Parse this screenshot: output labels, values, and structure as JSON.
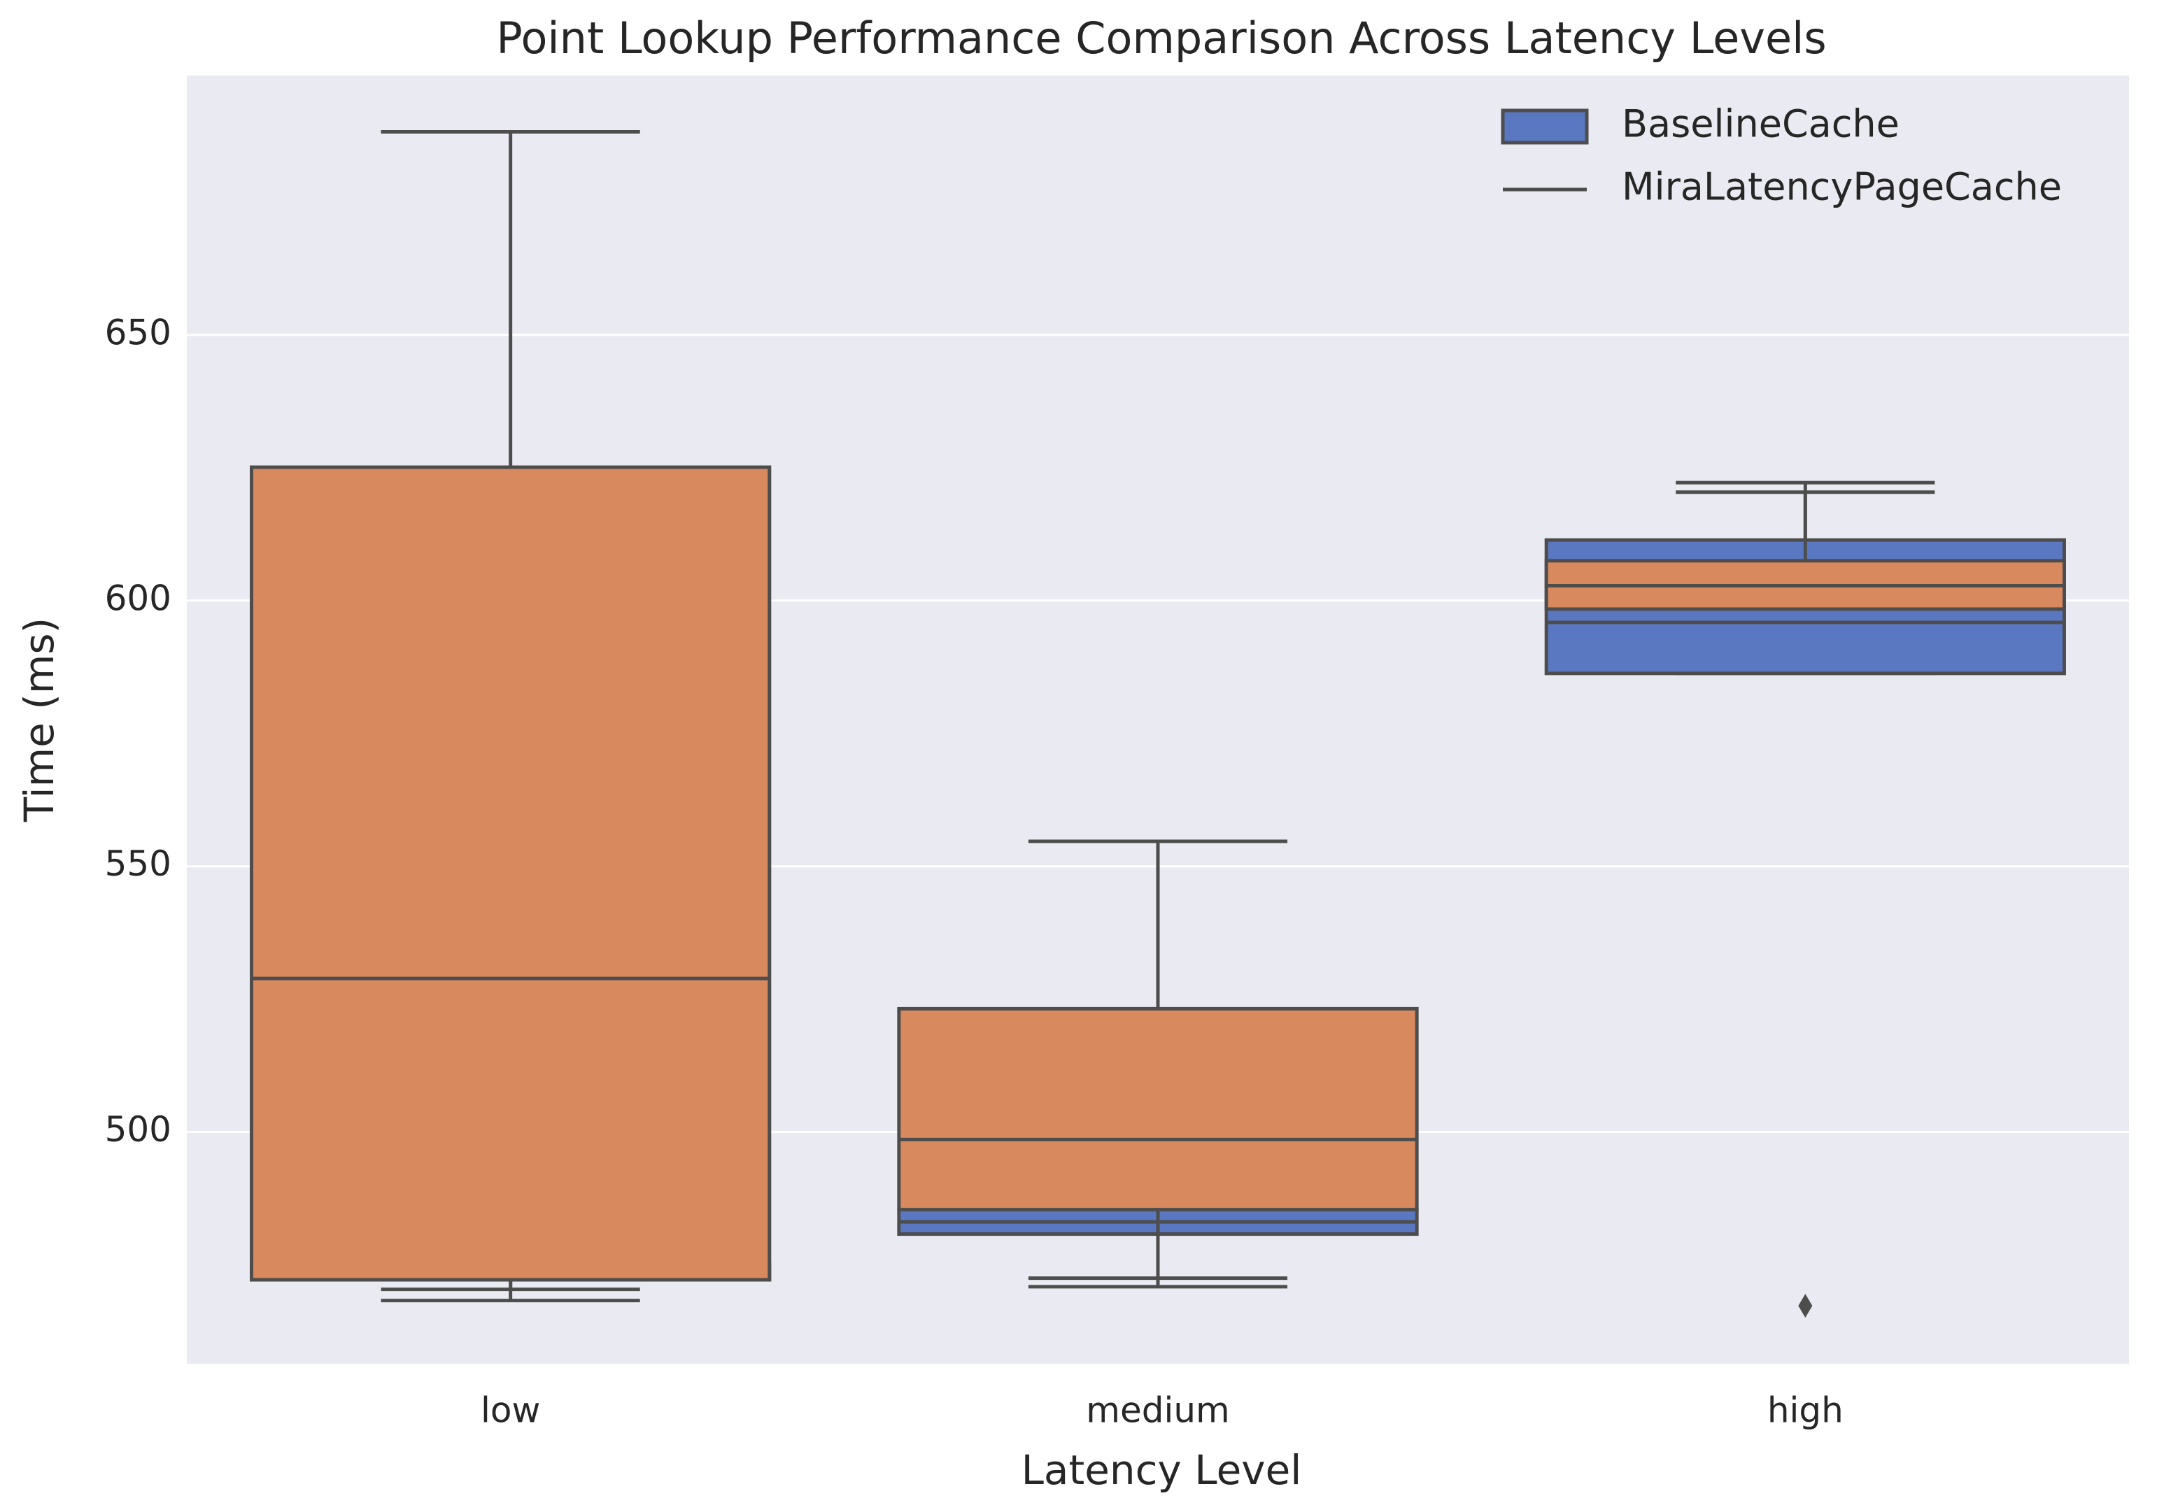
{
  "chart_data": {
    "type": "box",
    "title": "Point Lookup Performance Comparison Across Latency Levels",
    "x_label": "Latency Level",
    "y_label": "Time (ms)",
    "categories": [
      "low",
      "medium",
      "high"
    ],
    "ylim": [
      456.4,
      698.8
    ],
    "yticks": [
      500,
      550,
      600,
      650
    ],
    "grid": true,
    "legend_position": "upper right",
    "series": [
      {
        "name": "BaselineCache",
        "color": "#5a78c2",
        "boxes": [
          {
            "whislo": 468.3,
            "q1": 472.2,
            "med": 474.0,
            "q3": 475.3,
            "whishi": 594.0
          },
          {
            "whislo": 470.9,
            "q1": 480.8,
            "med": 483.1,
            "q3": 485.4,
            "whishi": 509.2
          },
          {
            "whislo": 586.3,
            "q1": 586.3,
            "med": 595.9,
            "q3": 611.4,
            "whishi": 622.2,
            "fliers": [
              467.3
            ]
          }
        ]
      },
      {
        "name": "MiraLatencyPageCache",
        "color": "#d9895e",
        "boxes": [
          {
            "whislo": 470.4,
            "q1": 472.2,
            "med": 528.9,
            "q3": 625.1,
            "whishi": 688.2
          },
          {
            "whislo": 472.5,
            "q1": 485.4,
            "med": 498.6,
            "q3": 523.2,
            "whishi": 554.7
          },
          {
            "whislo": 598.4,
            "q1": 598.4,
            "med": 602.8,
            "q3": 607.5,
            "whishi": 620.4
          }
        ]
      }
    ]
  }
}
